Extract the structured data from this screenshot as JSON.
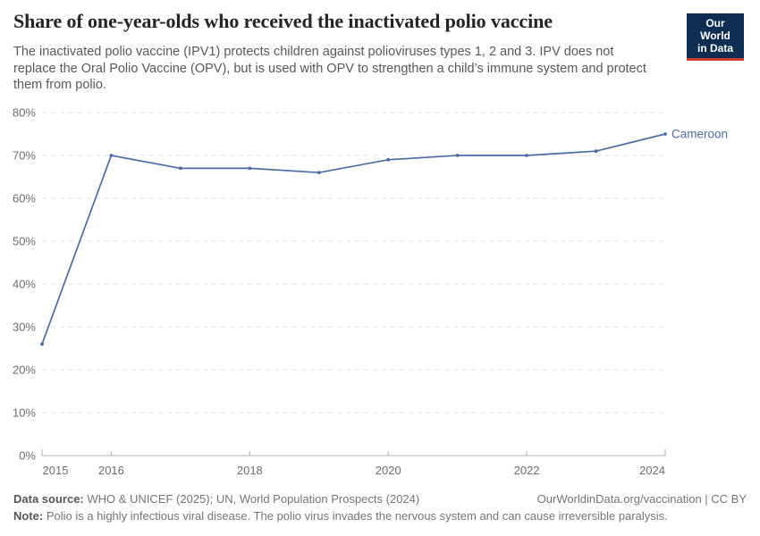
{
  "header": {
    "title": "Share of one-year-olds who received the inactivated polio vaccine",
    "subtitle": "The inactivated polio vaccine (IPV1) protects children against polioviruses types 1, 2 and 3. IPV does not replace the Oral Polio Vaccine (OPV), but is used with OPV to strengthen a child’s immune system and protect them from polio.",
    "logo": {
      "line1": "Our World",
      "line2": "in Data",
      "bg_color": "#0d2d52",
      "accent_color": "#d23d33"
    }
  },
  "chart_data": {
    "type": "line",
    "title": "Share of one-year-olds who received the inactivated polio vaccine",
    "x": [
      2015,
      2016,
      2017,
      2018,
      2019,
      2020,
      2021,
      2022,
      2023,
      2024
    ],
    "series": [
      {
        "name": "Cameroon",
        "values": [
          26,
          70,
          67,
          67,
          66,
          69,
          70,
          70,
          71,
          75
        ],
        "color": "#4c6ba8"
      }
    ],
    "end_label": "Cameroon",
    "xlabel": "",
    "ylabel": "",
    "ylim": [
      0,
      80
    ],
    "ytick_step": 10,
    "ytick_suffix": "%",
    "xticks": [
      2015,
      2016,
      2018,
      2020,
      2022,
      2024
    ],
    "grid": "horizontal-dashed",
    "legend_position": "end-of-line",
    "colors": {
      "line": "#4c6ba8",
      "gridline": "#e0e0e0",
      "axis": "#b3b3b3",
      "tick_text": "#6e6e6e"
    }
  },
  "footer": {
    "source_label": "Data source:",
    "source_text": "WHO & UNICEF (2025); UN, World Population Prospects (2024)",
    "rights": "OurWorldinData.org/vaccination | CC BY",
    "note_label": "Note:",
    "note_text": "Polio is a highly infectious viral disease. The polio virus invades the nervous system and can cause irreversible paralysis."
  }
}
